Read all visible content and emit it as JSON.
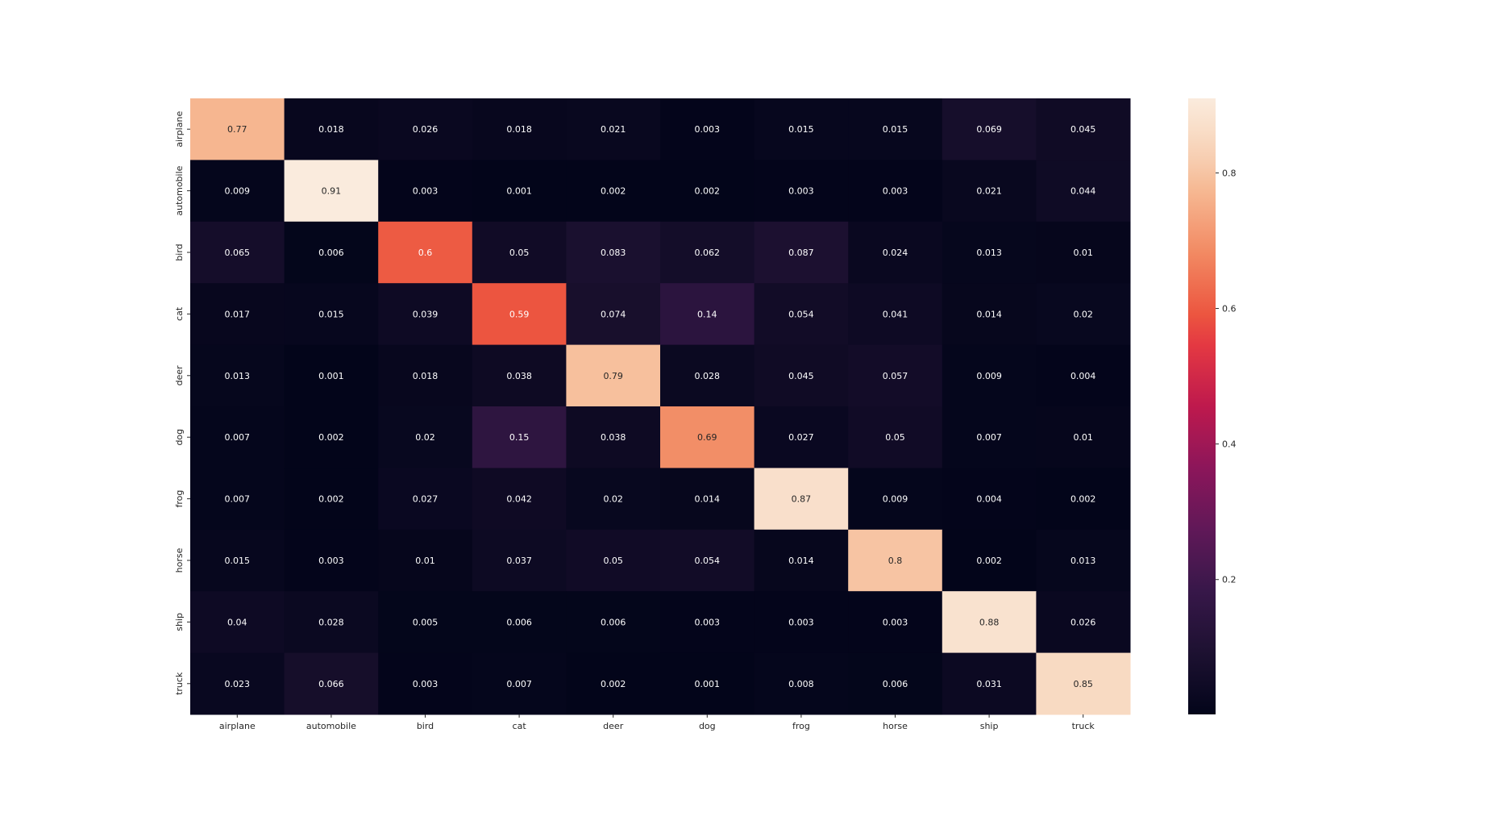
{
  "chart_data": {
    "type": "heatmap",
    "title": "",
    "xlabel": "",
    "ylabel": "",
    "x_categories": [
      "airplane",
      "automobile",
      "bird",
      "cat",
      "deer",
      "dog",
      "frog",
      "horse",
      "ship",
      "truck"
    ],
    "y_categories": [
      "airplane",
      "automobile",
      "bird",
      "cat",
      "deer",
      "dog",
      "frog",
      "horse",
      "ship",
      "truck"
    ],
    "values": [
      [
        0.77,
        0.018,
        0.026,
        0.018,
        0.021,
        0.003,
        0.015,
        0.015,
        0.069,
        0.045
      ],
      [
        0.009,
        0.91,
        0.003,
        0.001,
        0.002,
        0.002,
        0.003,
        0.003,
        0.021,
        0.044
      ],
      [
        0.065,
        0.006,
        0.6,
        0.05,
        0.083,
        0.062,
        0.087,
        0.024,
        0.013,
        0.01
      ],
      [
        0.017,
        0.015,
        0.039,
        0.59,
        0.074,
        0.14,
        0.054,
        0.041,
        0.014,
        0.02
      ],
      [
        0.013,
        0.001,
        0.018,
        0.038,
        0.79,
        0.028,
        0.045,
        0.057,
        0.009,
        0.004
      ],
      [
        0.007,
        0.002,
        0.02,
        0.15,
        0.038,
        0.69,
        0.027,
        0.05,
        0.007,
        0.01
      ],
      [
        0.007,
        0.002,
        0.027,
        0.042,
        0.02,
        0.014,
        0.87,
        0.009,
        0.004,
        0.002
      ],
      [
        0.015,
        0.003,
        0.01,
        0.037,
        0.05,
        0.054,
        0.014,
        0.8,
        0.002,
        0.013
      ],
      [
        0.04,
        0.028,
        0.005,
        0.006,
        0.006,
        0.003,
        0.003,
        0.003,
        0.88,
        0.026
      ],
      [
        0.023,
        0.066,
        0.003,
        0.007,
        0.002,
        0.001,
        0.008,
        0.006,
        0.031,
        0.85
      ]
    ],
    "value_labels": [
      [
        "0.77",
        "0.018",
        "0.026",
        "0.018",
        "0.021",
        "0.003",
        "0.015",
        "0.015",
        "0.069",
        "0.045"
      ],
      [
        "0.009",
        "0.91",
        "0.003",
        "0.001",
        "0.002",
        "0.002",
        "0.003",
        "0.003",
        "0.021",
        "0.044"
      ],
      [
        "0.065",
        "0.006",
        "0.6",
        "0.05",
        "0.083",
        "0.062",
        "0.087",
        "0.024",
        "0.013",
        "0.01"
      ],
      [
        "0.017",
        "0.015",
        "0.039",
        "0.59",
        "0.074",
        "0.14",
        "0.054",
        "0.041",
        "0.014",
        "0.02"
      ],
      [
        "0.013",
        "0.001",
        "0.018",
        "0.038",
        "0.79",
        "0.028",
        "0.045",
        "0.057",
        "0.009",
        "0.004"
      ],
      [
        "0.007",
        "0.002",
        "0.02",
        "0.15",
        "0.038",
        "0.69",
        "0.027",
        "0.05",
        "0.007",
        "0.01"
      ],
      [
        "0.007",
        "0.002",
        "0.027",
        "0.042",
        "0.02",
        "0.014",
        "0.87",
        "0.009",
        "0.004",
        "0.002"
      ],
      [
        "0.015",
        "0.003",
        "0.01",
        "0.037",
        "0.05",
        "0.054",
        "0.014",
        "0.8",
        "0.002",
        "0.013"
      ],
      [
        "0.04",
        "0.028",
        "0.005",
        "0.006",
        "0.006",
        "0.003",
        "0.003",
        "0.003",
        "0.88",
        "0.026"
      ],
      [
        "0.023",
        "0.066",
        "0.003",
        "0.007",
        "0.002",
        "0.001",
        "0.008",
        "0.006",
        "0.031",
        "0.85"
      ]
    ],
    "colormap": "rocket",
    "color_range": [
      0.001,
      0.91
    ],
    "colorbar_ticks": [
      0.2,
      0.4,
      0.6,
      0.8
    ],
    "colorbar_tick_labels": [
      "0.2",
      "0.4",
      "0.6",
      "0.8"
    ],
    "colors": {
      "low": "#03051a",
      "high": "#faebdd",
      "annotation_light": "#ffffff",
      "annotation_dark": "#262626",
      "axis_text": "#262626"
    },
    "grid": false,
    "legend": "colorbar-right"
  }
}
